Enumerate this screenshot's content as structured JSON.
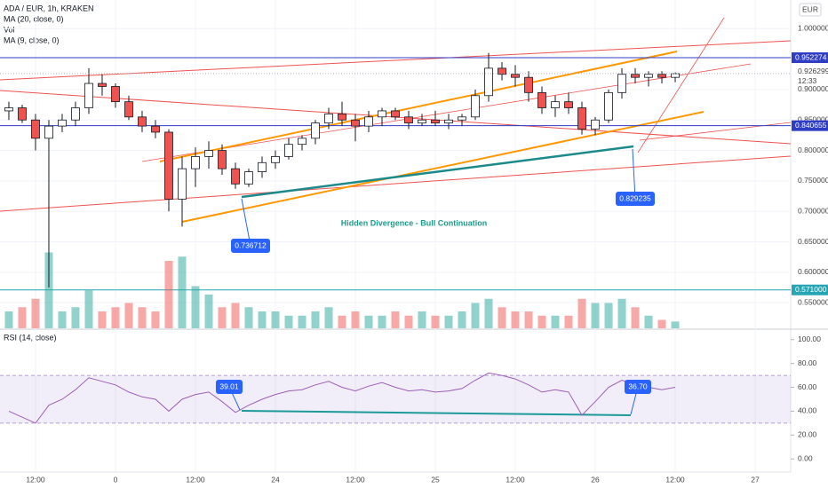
{
  "chart_data": [
    {
      "type": "candlestick",
      "title": "ADA / EUR, 1h, KRAKEN",
      "indicators": [
        "MA (20, close, 0)",
        "Vol",
        "MA (9, close, 0)"
      ],
      "currency": "EUR",
      "x": [
        -16,
        -14,
        -12,
        -10,
        -8,
        -6,
        -4,
        -2,
        0,
        2,
        4,
        6,
        8,
        10,
        12,
        14,
        16,
        18,
        20,
        22,
        24,
        26,
        28,
        30,
        32,
        34,
        36,
        38,
        40,
        42,
        44,
        46,
        48,
        50,
        52,
        54,
        56,
        58,
        60,
        62,
        64,
        66,
        68,
        70,
        72,
        74,
        76,
        78,
        80,
        82,
        84
      ],
      "open": [
        0.865,
        0.87,
        0.85,
        0.82,
        0.84,
        0.85,
        0.87,
        0.91,
        0.905,
        0.88,
        0.855,
        0.84,
        0.83,
        0.72,
        0.77,
        0.79,
        0.8,
        0.77,
        0.745,
        0.765,
        0.78,
        0.79,
        0.81,
        0.82,
        0.845,
        0.86,
        0.85,
        0.84,
        0.855,
        0.865,
        0.855,
        0.845,
        0.85,
        0.845,
        0.85,
        0.855,
        0.89,
        0.935,
        0.925,
        0.92,
        0.895,
        0.87,
        0.88,
        0.87,
        0.835,
        0.85,
        0.895,
        0.925,
        0.92,
        0.925,
        0.92
      ],
      "high": [
        0.88,
        0.875,
        0.86,
        0.85,
        0.86,
        0.88,
        0.935,
        0.925,
        0.91,
        0.89,
        0.865,
        0.85,
        0.835,
        0.79,
        0.805,
        0.815,
        0.81,
        0.78,
        0.77,
        0.79,
        0.8,
        0.82,
        0.825,
        0.85,
        0.87,
        0.88,
        0.86,
        0.865,
        0.87,
        0.87,
        0.865,
        0.86,
        0.865,
        0.86,
        0.86,
        0.9,
        0.96,
        0.945,
        0.94,
        0.93,
        0.905,
        0.89,
        0.895,
        0.88,
        0.855,
        0.9,
        0.935,
        0.935,
        0.93,
        0.93,
        0.928
      ],
      "low": [
        0.85,
        0.845,
        0.8,
        0.575,
        0.83,
        0.84,
        0.86,
        0.89,
        0.87,
        0.85,
        0.83,
        0.82,
        0.7,
        0.675,
        0.74,
        0.77,
        0.76,
        0.737,
        0.74,
        0.755,
        0.77,
        0.785,
        0.8,
        0.81,
        0.835,
        0.84,
        0.815,
        0.83,
        0.84,
        0.85,
        0.835,
        0.84,
        0.84,
        0.835,
        0.84,
        0.85,
        0.88,
        0.915,
        0.905,
        0.88,
        0.86,
        0.855,
        0.86,
        0.826,
        0.825,
        0.845,
        0.885,
        0.91,
        0.905,
        0.91,
        0.912
      ],
      "close": [
        0.87,
        0.85,
        0.82,
        0.84,
        0.85,
        0.87,
        0.91,
        0.905,
        0.88,
        0.855,
        0.84,
        0.83,
        0.72,
        0.77,
        0.79,
        0.8,
        0.77,
        0.745,
        0.765,
        0.78,
        0.79,
        0.81,
        0.82,
        0.845,
        0.86,
        0.85,
        0.84,
        0.855,
        0.865,
        0.855,
        0.845,
        0.85,
        0.845,
        0.85,
        0.855,
        0.89,
        0.935,
        0.925,
        0.92,
        0.895,
        0.87,
        0.88,
        0.87,
        0.835,
        0.85,
        0.895,
        0.925,
        0.92,
        0.925,
        0.92,
        0.926
      ],
      "volume": [
        20,
        25,
        35,
        90,
        20,
        25,
        45,
        20,
        25,
        30,
        25,
        20,
        80,
        85,
        50,
        40,
        25,
        30,
        25,
        20,
        20,
        15,
        15,
        20,
        25,
        15,
        20,
        15,
        15,
        20,
        15,
        20,
        15,
        15,
        20,
        30,
        35,
        25,
        20,
        20,
        15,
        15,
        15,
        35,
        30,
        30,
        35,
        25,
        15,
        10,
        8
      ],
      "up_color": "#26a69a",
      "down_color": "#ef5350",
      "xlim": [
        -17.33,
        101.33
      ],
      "xticks": [
        {
          "value": -12,
          "label": "12:00"
        },
        0,
        {
          "value": 12,
          "label": "12:00"
        },
        {
          "value": 24,
          "label": "24"
        },
        {
          "value": 36,
          "label": "12:00"
        },
        {
          "value": 48,
          "label": "25"
        },
        {
          "value": 60,
          "label": "12:00"
        },
        {
          "value": 72,
          "label": "26"
        },
        {
          "value": 84,
          "label": "12:00"
        },
        {
          "value": 96,
          "label": "27"
        }
      ],
      "ylim": [
        0.508,
        1.047
      ],
      "yticks": [
        {
          "value": 0.55,
          "label": "0.550000"
        },
        {
          "value": 0.6,
          "label": "0.600000"
        },
        {
          "value": 0.65,
          "label": "0.650000"
        },
        {
          "value": 0.7,
          "label": "0.700000"
        },
        {
          "value": 0.75,
          "label": "0.750000"
        },
        {
          "value": 0.8,
          "label": "0.800000"
        },
        {
          "value": 0.85,
          "label": "0.850000"
        },
        {
          "value": 0.9,
          "label": "0.900000"
        },
        {
          "value": 1.0,
          "label": "1.000000"
        }
      ],
      "hlines": [
        {
          "value": 0.952274,
          "label": "0.952274",
          "color": "#2f3cc4"
        },
        {
          "value": 0.840655,
          "label": "0.840655",
          "color": "#2f3cc4"
        },
        {
          "value": 0.571,
          "label": "0.571000",
          "color": "#26a6b4"
        }
      ],
      "last_price": {
        "value": 0.926299,
        "label": "0.926299"
      },
      "countdown": "12:33",
      "annotations": [
        "0.736712",
        "0.829235",
        "Hidden Divergence - Bull Continuation"
      ]
    },
    {
      "type": "line",
      "title": "RSI (14, close)",
      "x": [
        -16,
        -14,
        -12,
        -10,
        -8,
        -6,
        -4,
        -2,
        0,
        2,
        4,
        6,
        8,
        10,
        12,
        14,
        16,
        18,
        20,
        22,
        24,
        26,
        28,
        30,
        32,
        34,
        36,
        38,
        40,
        42,
        44,
        46,
        48,
        50,
        52,
        54,
        56,
        58,
        60,
        62,
        64,
        66,
        68,
        70,
        72,
        74,
        76,
        78,
        80,
        82,
        84
      ],
      "values": [
        40,
        35,
        30,
        45,
        50,
        58,
        68,
        65,
        62,
        56,
        52,
        50,
        40,
        50,
        54,
        56,
        48,
        39.01,
        45,
        50,
        54,
        57,
        58,
        62,
        65,
        60,
        57,
        61,
        64,
        60,
        57,
        58,
        56,
        57,
        59,
        66,
        72,
        70,
        67,
        62,
        56,
        58,
        56,
        36.7,
        48,
        60,
        66,
        62,
        60,
        58,
        60
      ],
      "color": "#9c5fb5",
      "band": [
        30,
        70
      ],
      "ylim": [
        -11,
        108
      ],
      "yticks": [
        {
          "value": 0,
          "label": "0.00"
        },
        {
          "value": 20,
          "label": "20.00"
        },
        {
          "value": 40,
          "label": "40.00"
        },
        {
          "value": 60,
          "label": "60.00"
        },
        {
          "value": 80,
          "label": "80.00"
        },
        {
          "value": 100,
          "label": "100.00"
        }
      ],
      "annotations": [
        "39.01",
        "36.70"
      ]
    }
  ]
}
